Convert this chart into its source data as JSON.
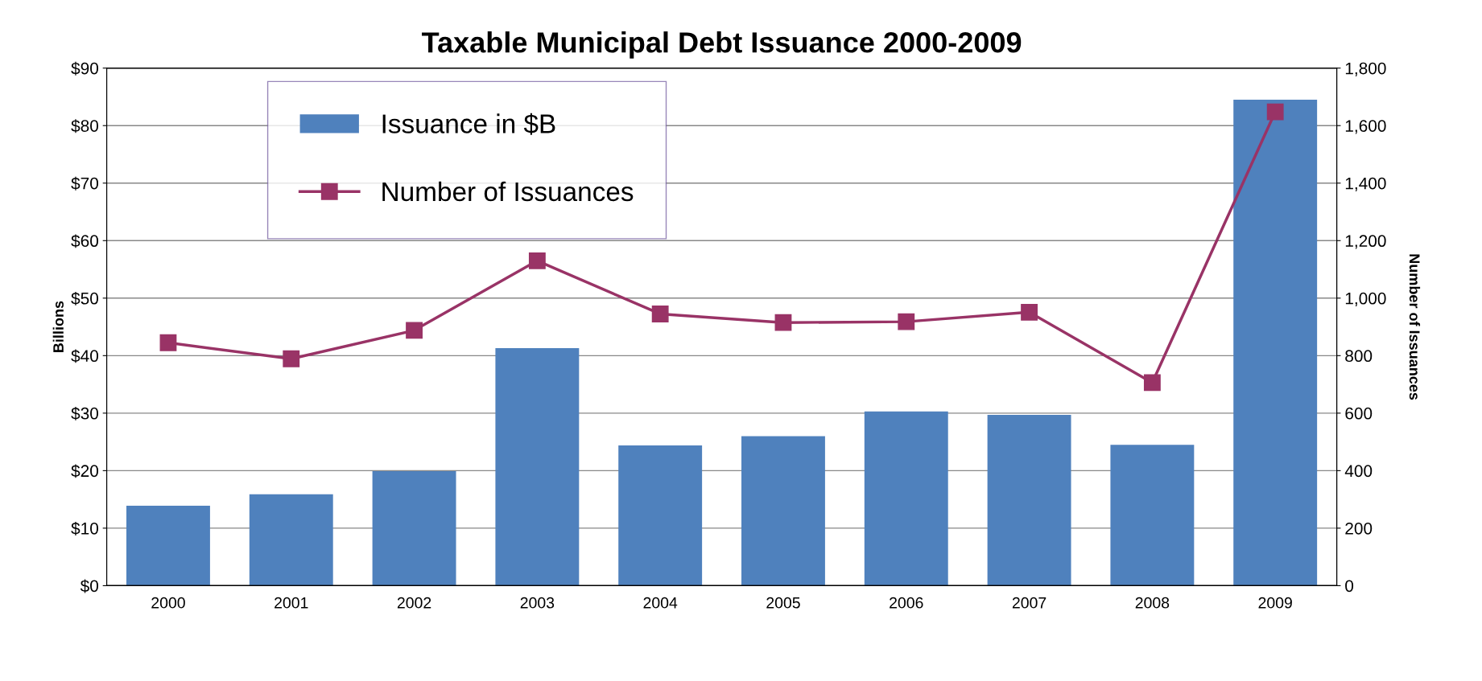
{
  "chart_data": {
    "type": "bar",
    "title": "Taxable Municipal Debt Issuance 2000-2009",
    "ylabel": "Billions",
    "y2label": "Number of Issuances",
    "categories": [
      "2000",
      "2001",
      "2002",
      "2003",
      "2004",
      "2005",
      "2006",
      "2007",
      "2008",
      "2009"
    ],
    "series": [
      {
        "name": "Issuance in $B",
        "color": "#4f81bd",
        "values": [
          13.9,
          15.9,
          19.9,
          41.3,
          24.4,
          26.0,
          30.3,
          29.7,
          24.5,
          84.5
        ]
      },
      {
        "name": "Number of Issuances",
        "type": "line",
        "axis": "y2",
        "color": "#993366",
        "marker": "square",
        "line_style": "solid",
        "values": [
          845,
          789,
          888,
          1130,
          945,
          915,
          918,
          951,
          706,
          1648
        ]
      }
    ],
    "ylim": [
      0,
      90
    ],
    "yticks": [
      {
        "value": 0,
        "label": "$0"
      },
      {
        "value": 10,
        "label": "$10"
      },
      {
        "value": 20,
        "label": "$20"
      },
      {
        "value": 30,
        "label": "$30"
      },
      {
        "value": 40,
        "label": "$40"
      },
      {
        "value": 50,
        "label": "$50"
      },
      {
        "value": 60,
        "label": "$60"
      },
      {
        "value": 70,
        "label": "$70"
      },
      {
        "value": 80,
        "label": "$80"
      },
      {
        "value": 90,
        "label": "$90"
      }
    ],
    "y2lim": [
      0,
      1800
    ],
    "y2ticks": [
      0,
      200,
      400,
      600,
      800,
      {
        "value": 1000,
        "label": "1,000"
      },
      {
        "value": 1200,
        "label": "1,200"
      },
      {
        "value": 1400,
        "label": "1,400"
      },
      {
        "value": 1600,
        "label": "1,600"
      },
      {
        "value": 1800,
        "label": "1,800"
      }
    ],
    "grid": "y",
    "legend": "top left"
  }
}
